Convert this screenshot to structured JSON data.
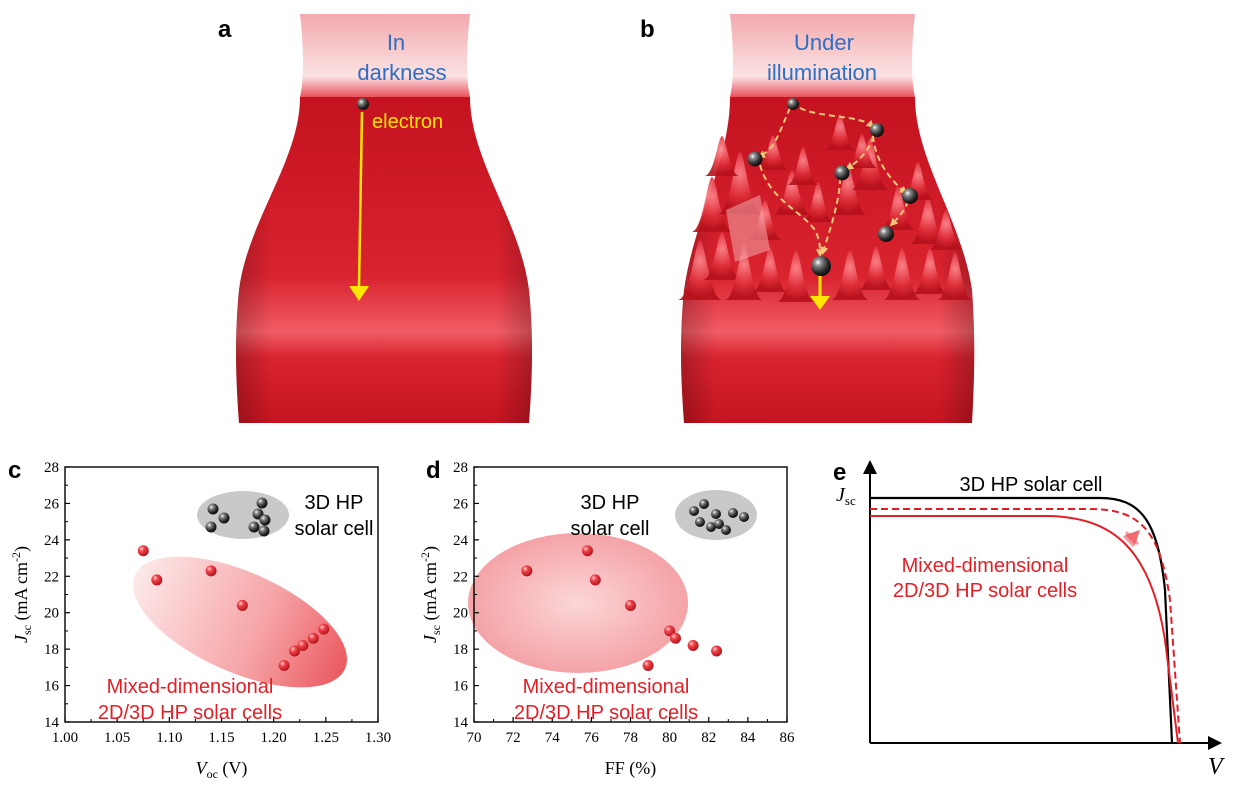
{
  "colors": {
    "red": "#e31f26",
    "surface_red": "#d9232f",
    "blue_text": "#2e6fc4",
    "yellow": "#ffe600",
    "dashed_arrow": "#f6c77a",
    "black": "#111111",
    "grey_ellipse": "#c8c8c8",
    "pink_ellipse": "#f7b9bb"
  },
  "panel_a": {
    "label": "a",
    "title_line1": "In",
    "title_line2": "darkness",
    "electron_label": "electron"
  },
  "panel_b": {
    "label": "b",
    "title_line1": "Under",
    "title_line2": "illumination"
  },
  "panel_e": {
    "label": "e",
    "y_label_main": "J",
    "y_label_sub": "sc",
    "x_label": "V",
    "label_3d": "3D HP solar cell",
    "label_mixed_line1": "Mixed-dimensional",
    "label_mixed_line2": "2D/3D HP solar cells"
  },
  "chart_data": [
    {
      "panel": "c",
      "type": "scatter",
      "xlabel_main": "V",
      "xlabel_sub": "oc",
      "xlabel_unit": " (V)",
      "ylabel_main": "J",
      "ylabel_sub": "sc",
      "ylabel_unit": " (mA cm",
      "ylabel_sup": "-2",
      "ylabel_close": ")",
      "xlim": [
        1.0,
        1.3
      ],
      "ylim": [
        14,
        28
      ],
      "xticks": [
        "1.00",
        "1.05",
        "1.10",
        "1.15",
        "1.20",
        "1.25",
        "1.30"
      ],
      "yticks": [
        "14",
        "16",
        "18",
        "20",
        "22",
        "24",
        "26",
        "28"
      ],
      "x": [
        1.075,
        1.088,
        1.14,
        1.17,
        1.21,
        1.22,
        1.228,
        1.238,
        1.248
      ],
      "y": [
        23.4,
        21.8,
        22.3,
        20.4,
        17.1,
        17.9,
        18.2,
        18.6,
        19.1
      ],
      "label_3d_line1": "3D HP",
      "label_3d_line2": "solar cell",
      "label_mixed_line1": "Mixed-dimensional",
      "label_mixed_line2": "2D/3D HP solar cells"
    },
    {
      "panel": "d",
      "type": "scatter",
      "xlabel_main": "FF",
      "xlabel_unit": " (%)",
      "ylabel_main": "J",
      "ylabel_sub": "sc",
      "ylabel_unit": " (mA cm",
      "ylabel_sup": "-2",
      "ylabel_close": ")",
      "xlim": [
        70,
        86
      ],
      "ylim": [
        14,
        28
      ],
      "xticks": [
        "70",
        "72",
        "74",
        "76",
        "78",
        "80",
        "82",
        "84",
        "86"
      ],
      "yticks": [
        "14",
        "16",
        "18",
        "20",
        "22",
        "24",
        "26",
        "28"
      ],
      "x": [
        72.7,
        75.8,
        76.2,
        78.0,
        78.9,
        80.0,
        80.3,
        81.2,
        82.4
      ],
      "y": [
        22.3,
        23.4,
        21.8,
        20.4,
        17.1,
        19.0,
        18.6,
        18.2,
        17.9
      ],
      "label_3d_line1": "3D HP",
      "label_3d_line2": "solar cell",
      "label_mixed_line1": "Mixed-dimensional",
      "label_mixed_line2": "2D/3D HP solar cells"
    }
  ]
}
